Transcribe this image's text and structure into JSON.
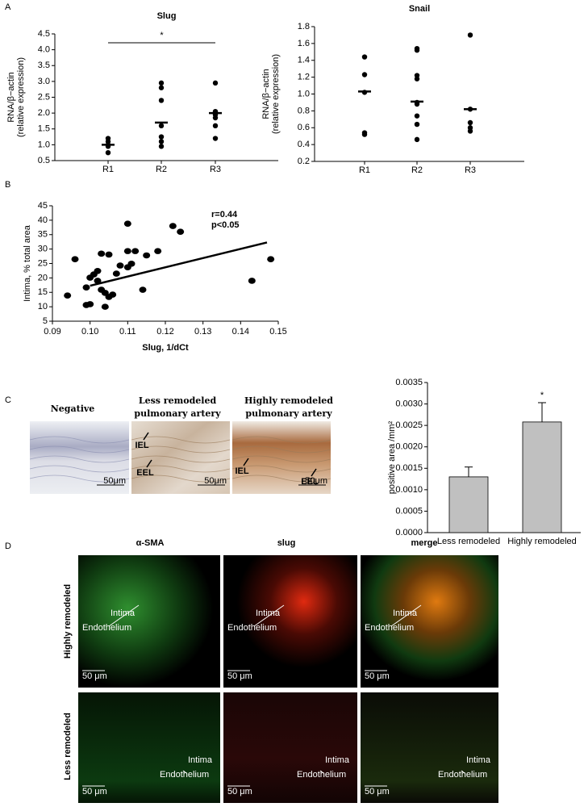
{
  "panel_labels": [
    "A",
    "B",
    "C",
    "D"
  ],
  "chart_data": [
    {
      "type": "dotplot",
      "title": "Slug",
      "y_label": [
        "RNA/β−actin",
        "(relative expression)"
      ],
      "categories": [
        "R1",
        "R2",
        "R3"
      ],
      "values": [
        [
          1.2,
          1.1,
          1.0,
          0.95,
          0.75
        ],
        [
          2.95,
          2.8,
          2.4,
          1.6,
          1.25,
          1.1,
          0.95
        ],
        [
          2.95,
          2.05,
          1.95,
          1.85,
          1.6,
          1.2
        ]
      ],
      "means": [
        1.0,
        1.7,
        2.0
      ],
      "color": "#000000",
      "ylim": [
        0.5,
        4.5
      ],
      "yticks": [
        0.5,
        {
          "value": 1,
          "label": "1.0"
        },
        1.5,
        {
          "value": 2,
          "label": "2.0"
        },
        2.5,
        {
          "value": 3,
          "label": "3.0"
        },
        3.5,
        {
          "value": 4,
          "label": "4.0"
        },
        4.5
      ],
      "annotation": "*"
    },
    {
      "type": "dotplot",
      "title": "Snail",
      "y_label": [
        "RNA/β−actin",
        "(relative expression)"
      ],
      "categories": [
        "R1",
        "R2",
        "R3"
      ],
      "values": [
        [
          1.44,
          1.23,
          1.02,
          0.54,
          0.52
        ],
        [
          1.54,
          1.52,
          1.22,
          1.18,
          0.9,
          0.88,
          0.74,
          0.64,
          0.46
        ],
        [
          1.7,
          0.82,
          0.66,
          0.6,
          0.56
        ]
      ],
      "means": [
        1.03,
        0.91,
        0.82
      ],
      "color": "#000000",
      "ylim": [
        0.2,
        1.8
      ],
      "yticks": [
        0.2,
        0.4,
        0.6,
        0.8,
        {
          "value": 1,
          "label": "1.0"
        },
        1.2,
        1.4,
        1.6,
        1.8
      ]
    },
    {
      "type": "scatter",
      "x_label": "Slug, 1/dCt",
      "y_label": "Intima, % total area",
      "annotations": [
        "r=0.44",
        "p<0.05"
      ],
      "color": "#000000",
      "x": [
        0.094,
        0.096,
        0.099,
        0.099,
        0.1,
        0.1,
        0.101,
        0.102,
        0.102,
        0.103,
        0.103,
        0.104,
        0.104,
        0.105,
        0.105,
        0.106,
        0.107,
        0.108,
        0.11,
        0.11,
        0.11,
        0.111,
        0.112,
        0.114,
        0.115,
        0.118,
        0.122,
        0.124,
        0.143,
        0.148
      ],
      "y": [
        13.9,
        26.5,
        16.7,
        10.6,
        10.9,
        20.1,
        21.2,
        22.4,
        19.0,
        15.9,
        28.4,
        14.8,
        10.0,
        13.4,
        28.1,
        14.2,
        21.5,
        24.3,
        29.3,
        23.7,
        38.8,
        24.9,
        29.3,
        15.9,
        27.8,
        29.3,
        38.0,
        36.0,
        19.0,
        26.5
      ],
      "fit": {
        "x": [
          0.1,
          0.147
        ],
        "y": [
          17.3,
          32.3
        ]
      },
      "xlim": [
        0.09,
        0.15
      ],
      "xticks": [
        0.09,
        {
          "value": 0.1,
          "label": "0.10"
        },
        0.11,
        0.12,
        0.13,
        0.14,
        0.15
      ],
      "ylim": [
        5,
        45
      ],
      "yticks": [
        5,
        10,
        15,
        20,
        25,
        30,
        35,
        40,
        45
      ]
    },
    {
      "type": "bar",
      "y_label": "positive area /mm²",
      "categories": [
        "Less remodeled",
        "Highly remodeled"
      ],
      "values": [
        0.0013,
        0.00258
      ],
      "errors": [
        0.00023,
        0.00045
      ],
      "color": "#c0c0c0",
      "ylim": [
        0,
        0.0035
      ],
      "yticks": [
        {
          "value": 0,
          "label": "0.0000"
        },
        0.0005,
        {
          "value": 0.001,
          "label": "0.0010"
        },
        0.0015,
        {
          "value": 0.002,
          "label": "0.0020"
        },
        0.0025,
        {
          "value": 0.003,
          "label": "0.0030"
        },
        0.0035
      ],
      "annotation": "*"
    }
  ],
  "micrographs_c": {
    "headers": [
      [
        "Negative"
      ],
      [
        "Less remodeled",
        "pulmonary artery"
      ],
      [
        "Highly remodeled",
        "pulmonary artery"
      ]
    ],
    "labels": {
      "iel": "IEL",
      "eel": "EEL",
      "scale": "50μm"
    }
  },
  "fluorescence_d": {
    "columns": [
      "α-SMA",
      "slug",
      "merge"
    ],
    "rows": [
      "Highly remodeled",
      "Less remodeled"
    ],
    "labels": {
      "intima": "Intima",
      "endothelium": "Endothelium",
      "scale": "50 μm"
    }
  }
}
